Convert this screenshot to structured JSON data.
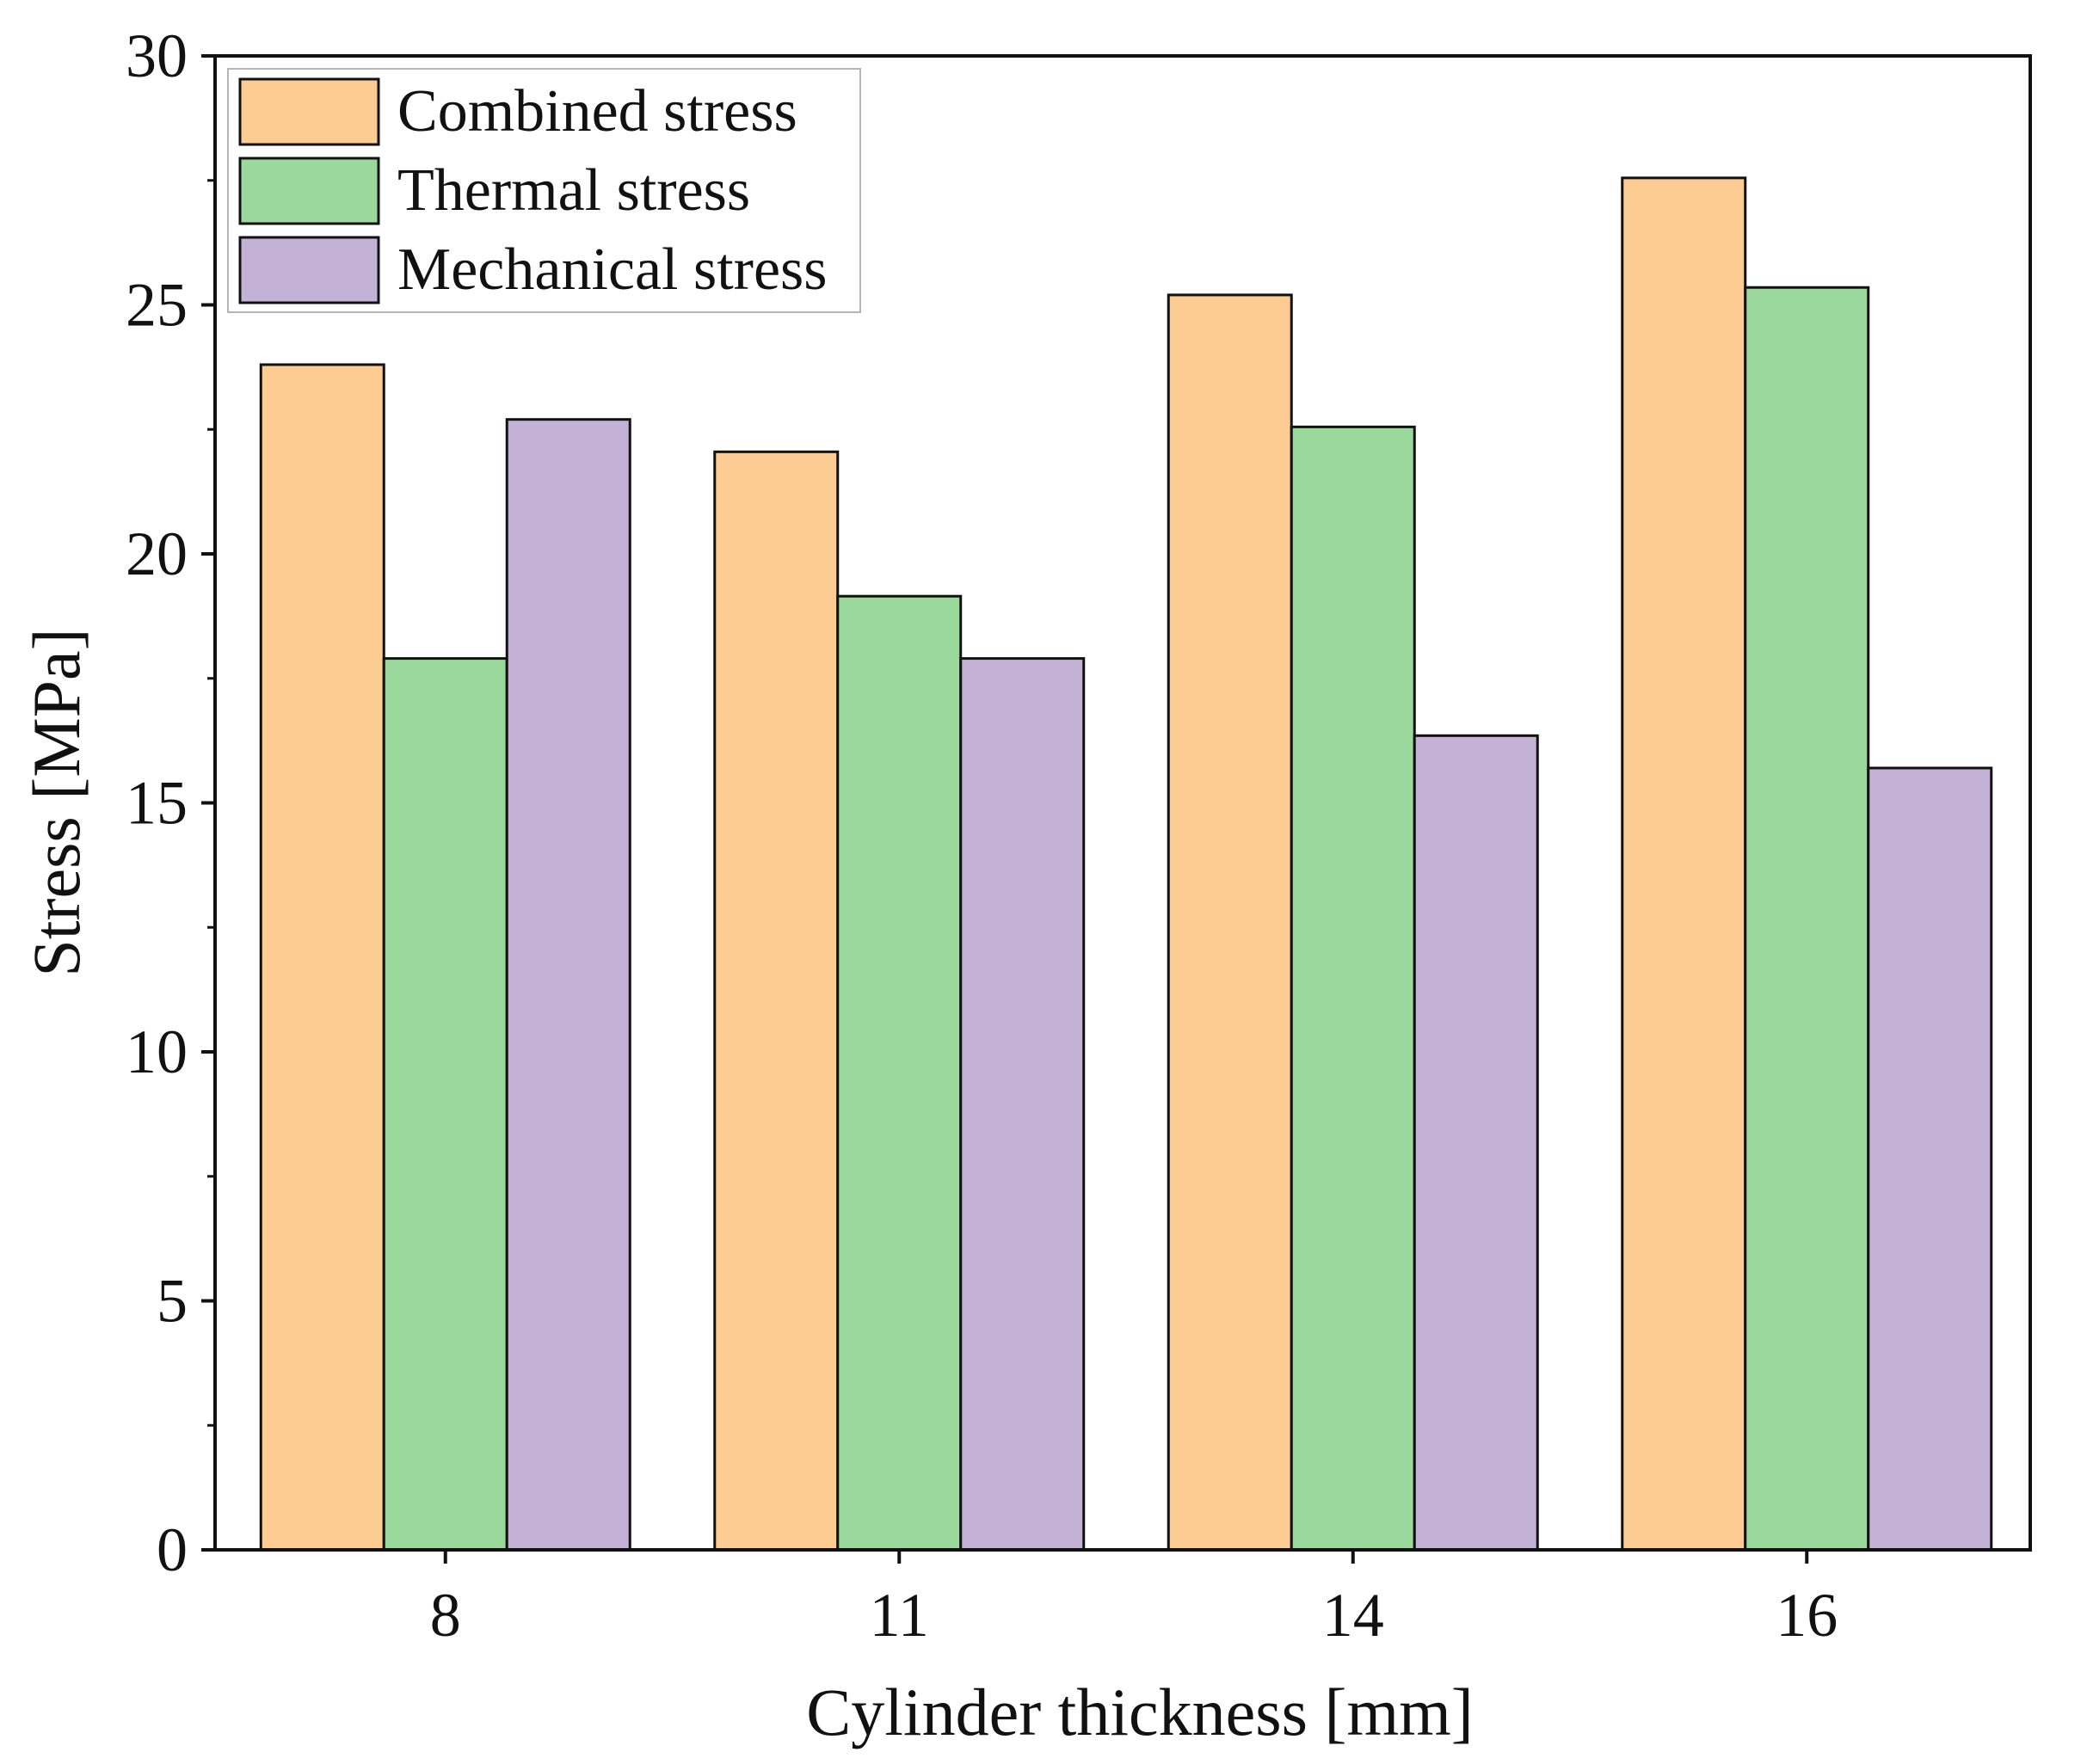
{
  "chart_data": {
    "type": "bar",
    "title": "",
    "xlabel": "Cylinder thickness [mm]",
    "ylabel": "Stress [MPa]",
    "categories": [
      "8",
      "11",
      "14",
      "16"
    ],
    "ylim": [
      0,
      30
    ],
    "yticks": [
      "0",
      "5",
      "10",
      "15",
      "20",
      "25",
      "30"
    ],
    "legend_position": "top-left",
    "grid": false,
    "series": [
      {
        "name": "Combined stress",
        "color": "#FCCC93",
        "values": [
          23.8,
          22.05,
          25.2,
          27.55
        ]
      },
      {
        "name": "Thermal stress",
        "color": "#9BD89B",
        "values": [
          17.9,
          19.15,
          22.55,
          25.35
        ]
      },
      {
        "name": "Mechanical stress",
        "color": "#C4B2D6",
        "values": [
          22.7,
          17.9,
          16.35,
          15.7
        ]
      }
    ]
  }
}
